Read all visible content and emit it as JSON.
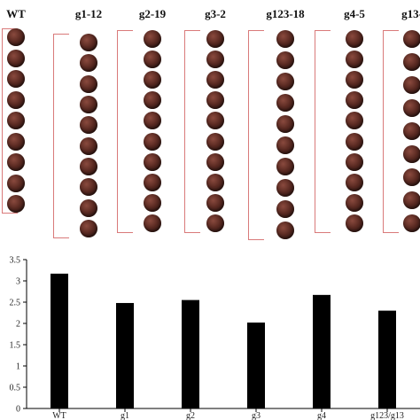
{
  "photo_panel": {
    "genotypes": [
      {
        "label": "WT",
        "seed_count": 9,
        "hl": 1
      },
      {
        "label": "g1-12",
        "seed_count": 10,
        "hl": 2
      },
      {
        "label": "g2-19",
        "seed_count": 10,
        "hl": 3
      },
      {
        "label": "g3-2",
        "seed_count": 10,
        "hl": 0
      },
      {
        "label": "g123-18",
        "seed_count": 10,
        "hl": 4
      },
      {
        "label": "g4-5",
        "seed_count": 10,
        "hl": 5
      },
      {
        "label": "g13-",
        "seed_count": 9,
        "hl": 6
      }
    ]
  },
  "chart_data": {
    "type": "bar",
    "categories": [
      "WT",
      "g1",
      "g2",
      "g3",
      "g4",
      "g123/g13"
    ],
    "values": [
      3.17,
      2.48,
      2.55,
      2.02,
      2.67,
      2.3
    ],
    "ylabel": "",
    "ylim": [
      0,
      3.5
    ],
    "yticks": [
      0,
      0.5,
      1,
      1.5,
      2,
      2.5,
      3,
      3.5
    ],
    "bar_color": "#000000",
    "grid": false
  }
}
